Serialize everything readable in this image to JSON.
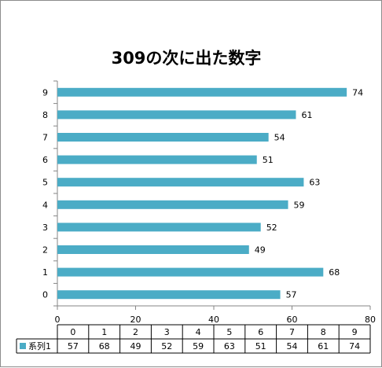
{
  "chart_data": {
    "type": "bar",
    "orientation": "horizontal",
    "title": "309の次に出た数字",
    "categories": [
      "0",
      "1",
      "2",
      "3",
      "4",
      "5",
      "6",
      "7",
      "8",
      "9"
    ],
    "series": [
      {
        "name": "系列1",
        "values": [
          57,
          68,
          49,
          52,
          59,
          63,
          51,
          54,
          61,
          74
        ]
      }
    ],
    "xlim": [
      0,
      80
    ],
    "x_ticks": [
      "0",
      "20",
      "40",
      "60",
      "80"
    ],
    "data_labels": true,
    "data_table": true,
    "legend": "none",
    "grid": false,
    "bar_color": "#4bacc6"
  }
}
